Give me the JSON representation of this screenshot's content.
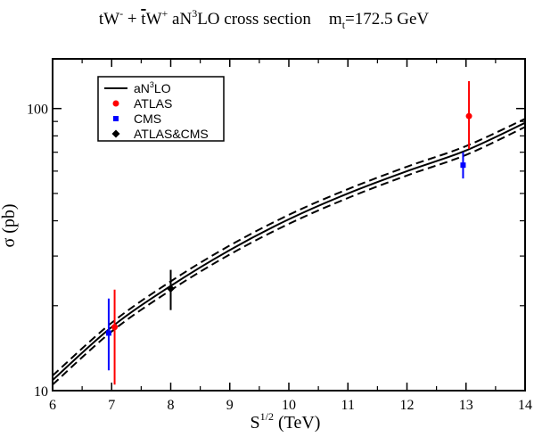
{
  "chart_data": {
    "type": "line",
    "title_parts": {
      "main": "tW",
      "sup1": "-",
      "plus": " + ",
      "tbar": "t",
      "w2": "W",
      "sup2": "+",
      "label_pre": "  aN",
      "sup3": "3",
      "label_post": "LO cross section",
      "mt": "m",
      "mt_sub": "t",
      "mt_val": "=172.5 GeV"
    },
    "xlabel": {
      "base": "S",
      "sup": "1/2",
      "rest": " (TeV)"
    },
    "ylabel": "σ (pb)",
    "x_scale": "linear",
    "y_scale": "log",
    "xlim": [
      6,
      14
    ],
    "ylim": [
      10,
      150
    ],
    "x_ticks": [
      6,
      7,
      8,
      9,
      10,
      11,
      12,
      13,
      14
    ],
    "x_tick_labels": [
      "6",
      "7",
      "8",
      "9",
      "10",
      "11",
      "12",
      "13",
      "14"
    ],
    "y_ticks": [
      10,
      100
    ],
    "y_tick_labels": [
      "10",
      "100"
    ],
    "grid": false,
    "legend_position": "top-left",
    "legend": [
      {
        "label_base": "aN",
        "label_sup": "3",
        "label_rest": "LO",
        "marker": "line",
        "color": "#000000"
      },
      {
        "label_base": "ATLAS",
        "label_sup": "",
        "label_rest": "",
        "marker": "circle",
        "color": "#ff0000"
      },
      {
        "label_base": "CMS",
        "label_sup": "",
        "label_rest": "",
        "marker": "square",
        "color": "#0000ff"
      },
      {
        "label_base": "ATLAS&CMS",
        "label_sup": "",
        "label_rest": "",
        "marker": "diamond",
        "color": "#000000"
      }
    ],
    "series": [
      {
        "name": "aN3LO",
        "style": "solid",
        "color": "#000000",
        "x": [
          6,
          7,
          8,
          9,
          10,
          11,
          12,
          13,
          14
        ],
        "y": [
          10.9,
          16.8,
          23.5,
          31.5,
          40.5,
          50.0,
          60.0,
          71.0,
          89.0
        ]
      },
      {
        "name": "",
        "style": "dashed",
        "color": "#000000",
        "x": [
          6,
          7,
          8,
          9,
          10,
          11,
          12,
          13,
          14
        ],
        "y": [
          11.3,
          17.4,
          24.4,
          32.7,
          42.0,
          51.8,
          62.2,
          73.6,
          92.0
        ]
      },
      {
        "name": "",
        "style": "dashed",
        "color": "#000000",
        "x": [
          6,
          7,
          8,
          9,
          10,
          11,
          12,
          13,
          14
        ],
        "y": [
          10.5,
          16.2,
          22.7,
          30.4,
          39.0,
          48.2,
          57.9,
          68.5,
          86.0
        ]
      }
    ],
    "points": [
      {
        "name": "ATLAS",
        "marker": "circle",
        "color": "#ff0000",
        "x": 7.05,
        "y": 16.8,
        "y_low": 10.5,
        "y_high": 22.8
      },
      {
        "name": "CMS",
        "marker": "square",
        "color": "#0000ff",
        "x": 6.95,
        "y": 16.0,
        "y_low": 11.8,
        "y_high": 21.2
      },
      {
        "name": "ATLAS&CMS",
        "marker": "diamond",
        "color": "#000000",
        "x": 8.0,
        "y": 23.0,
        "y_low": 19.3,
        "y_high": 26.8
      },
      {
        "name": "ATLAS",
        "marker": "circle",
        "color": "#ff0000",
        "x": 13.05,
        "y": 94.0,
        "y_low": 72.0,
        "y_high": 125.0
      },
      {
        "name": "CMS",
        "marker": "square",
        "color": "#0000ff",
        "x": 12.95,
        "y": 63.0,
        "y_low": 56.5,
        "y_high": 70.0
      }
    ]
  }
}
